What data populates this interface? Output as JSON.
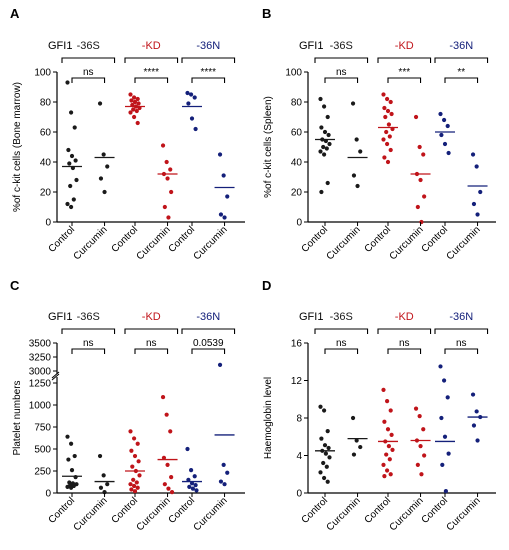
{
  "figure": {
    "panel_letters": [
      "A",
      "B",
      "C",
      "D"
    ]
  },
  "colors": {
    "-36S": "#1a1a1a",
    "-KD": "#c0141a",
    "-36N": "#14207a"
  },
  "chart_data": [
    {
      "panel": "A",
      "type": "scatter",
      "title": "",
      "row_label": "GFI1",
      "ylabel": "%of c-kit cells (Bone marrow)",
      "ylim": [
        0,
        100
      ],
      "yticks": [
        0,
        20,
        40,
        60,
        80,
        100
      ],
      "categories": [
        "Control",
        "Curcumin"
      ],
      "groups": [
        {
          "name": "-36S",
          "color": "#1a1a1a",
          "sig": "ns",
          "control": {
            "mean": 37,
            "values": [
              93,
              73,
              63,
              48,
              44,
              41,
              39,
              36,
              28,
              24,
              15,
              12,
              10
            ]
          },
          "curcumin": {
            "mean": 43,
            "values": [
              79,
              45,
              37,
              29,
              20
            ]
          }
        },
        {
          "name": "-KD",
          "color": "#c0141a",
          "sig": "****",
          "control": {
            "mean": 77,
            "values": [
              85,
              83,
              82,
              81,
              80,
              79,
              78,
              77,
              76,
              75,
              74,
              73,
              70,
              66
            ]
          },
          "curcumin": {
            "mean": 32,
            "values": [
              51,
              40,
              35,
              32,
              29,
              20,
              10,
              3
            ]
          }
        },
        {
          "name": "-36N",
          "color": "#14207a",
          "sig": "****",
          "control": {
            "mean": 77,
            "values": [
              86,
              85,
              83,
              79,
              69,
              62
            ]
          },
          "curcumin": {
            "mean": 23,
            "values": [
              45,
              31,
              17,
              5,
              3
            ]
          }
        }
      ]
    },
    {
      "panel": "B",
      "type": "scatter",
      "title": "",
      "row_label": "GFI1",
      "ylabel": "%of c-kit cells (Spleen)",
      "ylim": [
        0,
        100
      ],
      "yticks": [
        0,
        20,
        40,
        60,
        80,
        100
      ],
      "categories": [
        "Control",
        "Curcumin"
      ],
      "groups": [
        {
          "name": "-36S",
          "color": "#1a1a1a",
          "sig": "ns",
          "control": {
            "mean": 55,
            "values": [
              82,
              77,
              70,
              63,
              60,
              58,
              55,
              54,
              52,
              50,
              49,
              47,
              45,
              26,
              20
            ]
          },
          "curcumin": {
            "mean": 43,
            "values": [
              79,
              55,
              47,
              31,
              24
            ]
          }
        },
        {
          "name": "-KD",
          "color": "#c0141a",
          "sig": "***",
          "control": {
            "mean": 63,
            "values": [
              85,
              82,
              80,
              76,
              74,
              72,
              70,
              65,
              62,
              60,
              57,
              55,
              52,
              48,
              43,
              40
            ]
          },
          "curcumin": {
            "mean": 32,
            "values": [
              70,
              50,
              45,
              32,
              28,
              17,
              10,
              0
            ]
          }
        },
        {
          "name": "-36N",
          "color": "#14207a",
          "sig": "**",
          "control": {
            "mean": 60,
            "values": [
              72,
              68,
              64,
              58,
              52,
              46
            ]
          },
          "curcumin": {
            "mean": 24,
            "values": [
              45,
              37,
              20,
              12,
              5
            ]
          }
        }
      ]
    },
    {
      "panel": "C",
      "type": "scatter",
      "title": "",
      "row_label": "GFI1",
      "ylabel": "Platelet numbers",
      "ylim": [
        0,
        3500
      ],
      "axis_break": [
        1300,
        2900
      ],
      "yticks": [
        0,
        250,
        500,
        750,
        1000,
        1250,
        3000,
        3250,
        3500
      ],
      "categories": [
        "Control",
        "Curcumin"
      ],
      "groups": [
        {
          "name": "-36S",
          "color": "#1a1a1a",
          "sig": "ns",
          "control": {
            "mean": 190,
            "values": [
              640,
              560,
              420,
              380,
              260,
              180,
              120,
              110,
              100,
              90,
              80,
              70,
              60
            ]
          },
          "curcumin": {
            "mean": 130,
            "values": [
              420,
              200,
              100,
              60,
              10
            ]
          }
        },
        {
          "name": "-KD",
          "color": "#c0141a",
          "sig": "ns",
          "control": {
            "mean": 250,
            "values": [
              700,
              620,
              560,
              480,
              420,
              360,
              300,
              250,
              200,
              150,
              120,
              100,
              80,
              60,
              40,
              20
            ]
          },
          "curcumin": {
            "mean": 380,
            "values": [
              1090,
              890,
              700,
              400,
              320,
              180,
              100,
              50,
              10
            ]
          }
        },
        {
          "name": "-36N",
          "color": "#14207a",
          "sig": "0.0539",
          "control": {
            "mean": 130,
            "values": [
              500,
              260,
              190,
              150,
              110,
              90,
              70,
              50,
              30
            ]
          },
          "curcumin": {
            "mean": 660,
            "values": [
              3110,
              320,
              230,
              130,
              100
            ]
          }
        }
      ]
    },
    {
      "panel": "D",
      "type": "scatter",
      "title": "",
      "row_label": "GFI1",
      "ylabel": "Haemoglobin level",
      "ylim": [
        0,
        16
      ],
      "yticks": [
        0,
        4,
        8,
        12,
        16
      ],
      "categories": [
        "Control",
        "Curcumin"
      ],
      "groups": [
        {
          "name": "-36S",
          "color": "#1a1a1a",
          "sig": "ns",
          "control": {
            "mean": 4.5,
            "values": [
              9.2,
              8.8,
              6.6,
              5.8,
              5.1,
              4.8,
              4.5,
              4.2,
              3.8,
              3.2,
              2.8,
              2.2,
              1.6,
              1.2
            ]
          },
          "curcumin": {
            "mean": 5.8,
            "values": [
              8,
              5.6,
              4.9,
              4.1
            ]
          }
        },
        {
          "name": "-KD",
          "color": "#c0141a",
          "sig": "ns",
          "control": {
            "mean": 5.5,
            "values": [
              11,
              9.8,
              8.8,
              7.6,
              6.8,
              6.2,
              5.5,
              5,
              4.6,
              4.1,
              3.6,
              3,
              2.4,
              2,
              1.8
            ]
          },
          "curcumin": {
            "mean": 5.6,
            "values": [
              9,
              8.2,
              6.8,
              5.6,
              5,
              4,
              3,
              2
            ]
          }
        },
        {
          "name": "-36N",
          "color": "#14207a",
          "sig": "ns",
          "control": {
            "mean": 5.5,
            "values": [
              13.5,
              12,
              10.2,
              8,
              6,
              4.2,
              3,
              0.2
            ]
          },
          "curcumin": {
            "mean": 8.1,
            "values": [
              10.5,
              8.7,
              8.1,
              7.2,
              5.6
            ]
          }
        }
      ]
    }
  ]
}
